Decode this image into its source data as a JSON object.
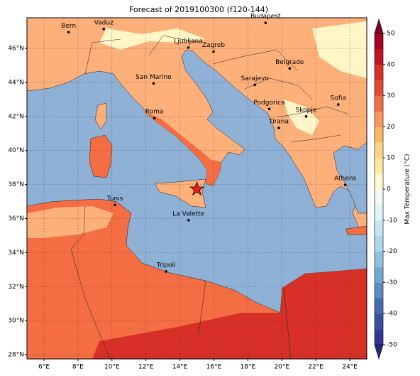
{
  "title": "Forecast of 2019100300 (f120-144)",
  "map": {
    "xlim": [
      5,
      25
    ],
    "ylim": [
      27.75,
      47.8
    ],
    "xticks": [
      {
        "value": 6,
        "label": "6°E"
      },
      {
        "value": 8,
        "label": "8°E"
      },
      {
        "value": 10,
        "label": "10°E"
      },
      {
        "value": 12,
        "label": "12°E"
      },
      {
        "value": 14,
        "label": "14°E"
      },
      {
        "value": 16,
        "label": "16°E"
      },
      {
        "value": 18,
        "label": "18°E"
      },
      {
        "value": 20,
        "label": "20°E"
      },
      {
        "value": 22,
        "label": "22°E"
      },
      {
        "value": 24,
        "label": "24°E"
      }
    ],
    "yticks": [
      {
        "value": 28,
        "label": "28°N"
      },
      {
        "value": 30,
        "label": "30°N"
      },
      {
        "value": 32,
        "label": "32°N"
      },
      {
        "value": 34,
        "label": "34°N"
      },
      {
        "value": 36,
        "label": "36°N"
      },
      {
        "value": 38,
        "label": "38°N"
      },
      {
        "value": 40,
        "label": "40°N"
      },
      {
        "value": 42,
        "label": "42°N"
      },
      {
        "value": 44,
        "label": "44°N"
      },
      {
        "value": 46,
        "label": "46°N"
      }
    ],
    "grid": true,
    "cities": [
      {
        "name": "Bern",
        "lon": 7.45,
        "lat": 46.95
      },
      {
        "name": "Vaduz",
        "lon": 9.52,
        "lat": 47.14
      },
      {
        "name": "Budapest",
        "lon": 19.04,
        "lat": 47.5
      },
      {
        "name": "Ljubljana",
        "lon": 14.5,
        "lat": 46.05
      },
      {
        "name": "Zagreb",
        "lon": 15.98,
        "lat": 45.81
      },
      {
        "name": "Belgrade",
        "lon": 20.46,
        "lat": 44.82
      },
      {
        "name": "San Marino",
        "lon": 12.45,
        "lat": 43.94
      },
      {
        "name": "Sarajevo",
        "lon": 18.41,
        "lat": 43.86
      },
      {
        "name": "Sofia",
        "lon": 23.32,
        "lat": 42.7
      },
      {
        "name": "Podgorica",
        "lon": 19.26,
        "lat": 42.44
      },
      {
        "name": "Skopje",
        "lon": 21.43,
        "lat": 42.0
      },
      {
        "name": "Roma",
        "lon": 12.5,
        "lat": 41.9
      },
      {
        "name": "Tirana",
        "lon": 19.82,
        "lat": 41.33
      },
      {
        "name": "Athens",
        "lon": 23.73,
        "lat": 37.98
      },
      {
        "name": "Tunis",
        "lon": 10.18,
        "lat": 36.8
      },
      {
        "name": "La Valette",
        "lon": 14.51,
        "lat": 35.9
      },
      {
        "name": "Tripoli",
        "lon": 13.19,
        "lat": 32.89
      }
    ],
    "marker": {
      "lon": 15.0,
      "lat": 37.73,
      "color": "#e8201c"
    }
  },
  "colorbar": {
    "label": "Max Temperature (°C)",
    "lim": [
      -50,
      50
    ],
    "ticks": [
      -50,
      -40,
      -30,
      -20,
      -10,
      0,
      10,
      20,
      30,
      40,
      50
    ],
    "colors": [
      "#313695",
      "#3b4fa2",
      "#4669af",
      "#5d8bc0",
      "#74a9cf",
      "#8fc3dd",
      "#abd9e9",
      "#c5e6f0",
      "#e0f3f8",
      "#f2faf3",
      "#fffad0",
      "#fee99c",
      "#fed385",
      "#fdb567",
      "#fa9656",
      "#f46d43",
      "#e34a33",
      "#d73027",
      "#bd1726",
      "#a50026"
    ]
  }
}
